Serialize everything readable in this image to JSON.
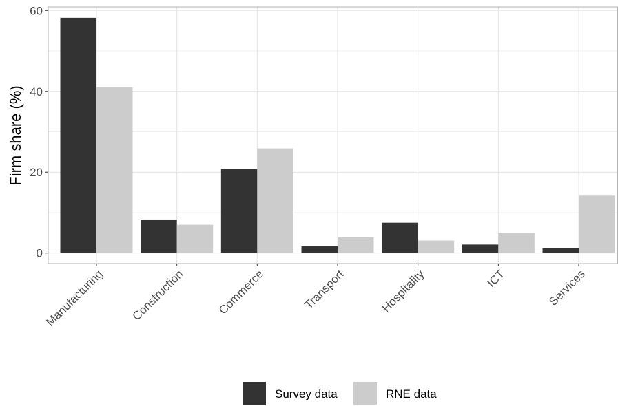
{
  "chart_data": {
    "type": "bar",
    "title": "",
    "xlabel": "",
    "ylabel": "Firm share (%)",
    "categories": [
      "Manufacturing",
      "Construction",
      "Commerce",
      "Transport",
      "Hospitality",
      "ICT",
      "Services"
    ],
    "series": [
      {
        "name": "Survey data",
        "color": "#333333",
        "values": [
          58.2,
          8.3,
          20.8,
          1.8,
          7.5,
          2.1,
          1.2
        ]
      },
      {
        "name": "RNE data",
        "color": "#cccccc",
        "values": [
          41.0,
          7.0,
          25.9,
          3.9,
          3.1,
          4.9,
          14.2
        ]
      }
    ],
    "ylim": [
      -2.6,
      60.9
    ],
    "yticks": [
      0,
      20,
      40,
      60
    ],
    "grid": true,
    "legend_position": "bottom"
  }
}
